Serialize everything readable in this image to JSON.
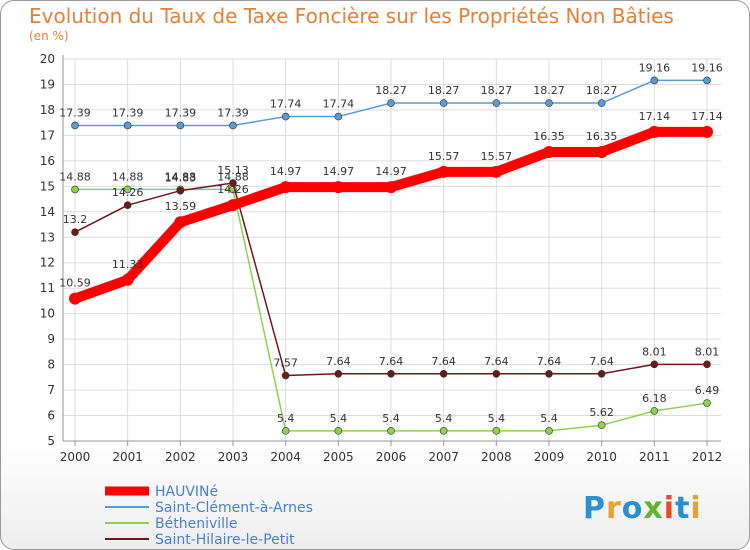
{
  "title": "Evolution du Taux de Taxe Foncière sur les Propriétés Non Bâties",
  "subtitle": "(en %)",
  "logo": {
    "text": "Proxiti",
    "colors": [
      "#2a8fd6",
      "#e8a233",
      "#2a8fd6",
      "#5fb534",
      "#e84a2d",
      "#2a8fd6",
      "#e8a233"
    ]
  },
  "chart_data": {
    "type": "line",
    "x": [
      "2000",
      "2001",
      "2002",
      "2003",
      "2004",
      "2005",
      "2006",
      "2007",
      "2008",
      "2009",
      "2010",
      "2011",
      "2012"
    ],
    "ylim": [
      5,
      20
    ],
    "yticks": [
      "5",
      "6",
      "7",
      "8",
      "9",
      "10",
      "11",
      "12",
      "13",
      "14",
      "15",
      "16",
      "17",
      "18",
      "19",
      "20"
    ],
    "grid": true,
    "legend_position": "bottom-left",
    "series": [
      {
        "name": "HAUVINé",
        "color": "#ff0000",
        "values": [
          10.59,
          11.33,
          13.59,
          14.26,
          14.97,
          14.97,
          14.97,
          15.57,
          15.57,
          16.35,
          16.35,
          17.14,
          17.14
        ],
        "labels": [
          "10.59",
          "11.33",
          "13.59",
          "14.26",
          "14.97",
          "14.97",
          "14.97",
          "15.57",
          "15.57",
          "16.35",
          "16.35",
          "17.14",
          "17.14"
        ]
      },
      {
        "name": "Saint-Clément-à-Arnes",
        "color": "#5b9bd5",
        "values": [
          17.39,
          17.39,
          17.39,
          17.39,
          17.74,
          17.74,
          18.27,
          18.27,
          18.27,
          18.27,
          18.27,
          19.16,
          19.16
        ],
        "labels": [
          "17.39",
          "17.39",
          "17.39",
          "17.39",
          "17.74",
          "17.74",
          "18.27",
          "18.27",
          "18.27",
          "18.27",
          "18.27",
          "19.16",
          "19.16"
        ]
      },
      {
        "name": "Bétheniville",
        "color": "#90d050",
        "values": [
          14.88,
          14.88,
          14.88,
          14.88,
          5.4,
          5.4,
          5.4,
          5.4,
          5.4,
          5.4,
          5.62,
          6.18,
          6.49
        ],
        "labels": [
          "14.88",
          "14.88",
          "14.88",
          "14.88",
          "5.4",
          "5.4",
          "5.4",
          "5.4",
          "5.4",
          "5.4",
          "5.62",
          "6.18",
          "6.49"
        ]
      },
      {
        "name": "Saint-Hilaire-le-Petit",
        "color": "#6b1a1a",
        "values": [
          13.2,
          14.26,
          14.83,
          15.13,
          7.57,
          7.64,
          7.64,
          7.64,
          7.64,
          7.64,
          7.64,
          8.01,
          8.01
        ],
        "labels": [
          "13.2",
          "14.26",
          "14.83",
          "15.13",
          "7.57",
          "7.64",
          "7.64",
          "7.64",
          "7.64",
          "7.64",
          "7.64",
          "8.01",
          "8.01"
        ]
      }
    ]
  }
}
